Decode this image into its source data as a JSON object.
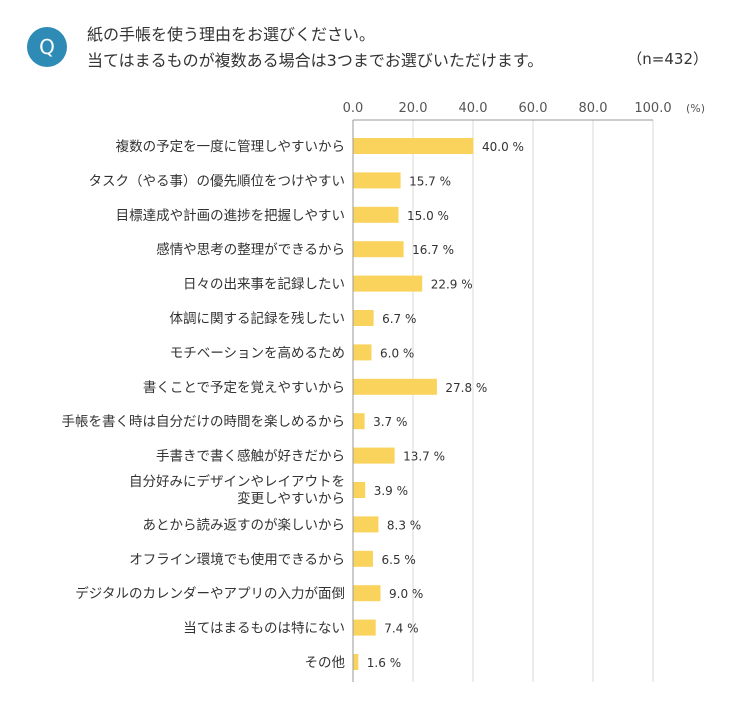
{
  "header": {
    "badge": "Q",
    "question_line1": "紙の手帳を使う理由をお選びください。",
    "question_line2": "当てはまるものが複数ある場合は3つまでお選びいただけます。",
    "sample_size": "（n=432）"
  },
  "chart_data": {
    "type": "bar",
    "orientation": "horizontal",
    "title": "紙の手帳を使う理由をお選びください。当てはまるものが複数ある場合は3つまでお選びいただけます。",
    "unit": "(%)",
    "xlim": [
      0,
      100
    ],
    "ticks": [
      "0.0",
      "20.0",
      "40.0",
      "60.0",
      "80.0",
      "100.0"
    ],
    "tick_values": [
      0,
      20,
      40,
      60,
      80,
      100
    ],
    "grid": true,
    "bar_color": "#f9d35b",
    "categories": [
      [
        "複数の予定を一度に管理しやすいから"
      ],
      [
        "タスク（やる事）の優先順位をつけやすい"
      ],
      [
        "目標達成や計画の進捗を把握しやすい"
      ],
      [
        "感情や思考の整理ができるから"
      ],
      [
        "日々の出来事を記録したい"
      ],
      [
        "体調に関する記録を残したい"
      ],
      [
        "モチベーションを高めるため"
      ],
      [
        "書くことで予定を覚えやすいから"
      ],
      [
        "手帳を書く時は自分だけの時間を楽しめるから"
      ],
      [
        "手書きで書く感触が好きだから"
      ],
      [
        "自分好みにデザインやレイアウトを",
        "変更しやすいから"
      ],
      [
        "あとから読み返すのが楽しいから"
      ],
      [
        "オフライン環境でも使用できるから"
      ],
      [
        "デジタルのカレンダーやアプリの入力が面倒"
      ],
      [
        "当てはまるものは特にない"
      ],
      [
        "その他"
      ]
    ],
    "values": [
      40.0,
      15.7,
      15.0,
      16.7,
      22.9,
      6.7,
      6.0,
      27.8,
      3.7,
      13.7,
      3.9,
      8.3,
      6.5,
      9.0,
      7.4,
      1.6
    ],
    "value_labels": [
      "40.0 %",
      "15.7 %",
      "15.0 %",
      "16.7 %",
      "22.9 %",
      "6.7 %",
      "6.0 %",
      "27.8 %",
      "3.7 %",
      "13.7 %",
      "3.9 %",
      "8.3 %",
      "6.5 %",
      "9.0 %",
      "7.4 %",
      "1.6 %"
    ]
  }
}
